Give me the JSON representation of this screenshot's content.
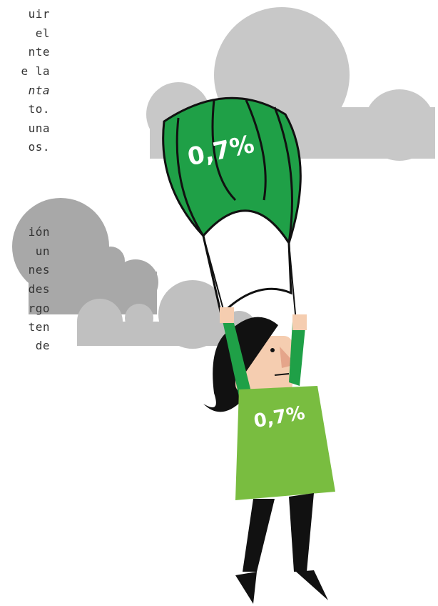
{
  "text_lines": [
    "uir",
    "el",
    "nte",
    "e la",
    "nta",
    "to.",
    "una",
    "os.",
    "ión",
    "un",
    "nes",
    "des",
    "rgo",
    "ten",
    "de"
  ],
  "parachute_label": "0,7%",
  "shirt_label": "0,7%"
}
